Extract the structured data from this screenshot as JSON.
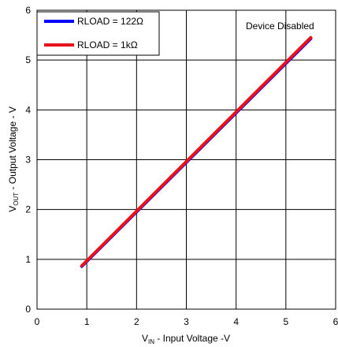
{
  "chart_data": {
    "type": "line",
    "title": "",
    "xlabel_main": "V",
    "xlabel_sub": "IN",
    "xlabel_rest": " - Input Voltage -V",
    "ylabel_main": "V",
    "ylabel_sub": "OUT",
    "ylabel_rest": " - Output Voltage - V",
    "xlim": [
      0,
      6
    ],
    "ylim": [
      0,
      6
    ],
    "x_ticks": [
      "0",
      "1",
      "2",
      "3",
      "4",
      "5",
      "6"
    ],
    "y_ticks": [
      "0",
      "1",
      "2",
      "3",
      "4",
      "5",
      "6"
    ],
    "grid": true,
    "legend_position": "top-left",
    "annotation": "Device Disabled",
    "series": [
      {
        "name": "RLOAD = 122Ω",
        "color": "#0000ff",
        "x": [
          0.9,
          5.5
        ],
        "y": [
          0.86,
          5.43
        ]
      },
      {
        "name": "RLOAD = 1kΩ",
        "color": "#e8121c",
        "x": [
          0.9,
          5.5
        ],
        "y": [
          0.87,
          5.45
        ]
      }
    ]
  }
}
